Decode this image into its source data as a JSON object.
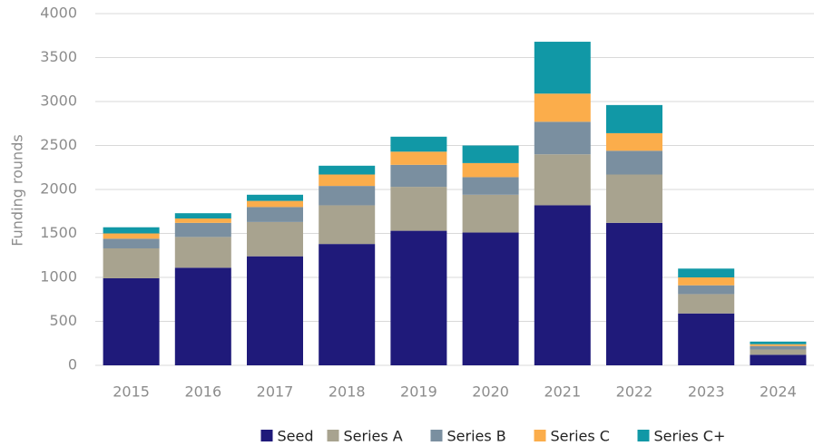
{
  "chart_data": {
    "type": "stacked_bar",
    "y_label": "Funding rounds",
    "categories": [
      "2015",
      "2016",
      "2017",
      "2018",
      "2019",
      "2020",
      "2021",
      "2022",
      "2023",
      "2024"
    ],
    "series": [
      {
        "name": "Seed",
        "color": "#1f1a7a",
        "values": [
          990,
          1110,
          1240,
          1380,
          1530,
          1510,
          1820,
          1620,
          590,
          120
        ]
      },
      {
        "name": "Series A",
        "color": "#a8a38f",
        "values": [
          340,
          350,
          390,
          440,
          500,
          430,
          580,
          550,
          220,
          60
        ]
      },
      {
        "name": "Series B",
        "color": "#7a8fa0",
        "values": [
          110,
          160,
          170,
          220,
          250,
          200,
          370,
          270,
          100,
          40
        ]
      },
      {
        "name": "Series C",
        "color": "#fbad4b",
        "values": [
          60,
          50,
          70,
          130,
          150,
          160,
          320,
          200,
          90,
          20
        ]
      },
      {
        "name": "Series C+",
        "color": "#1198a6",
        "values": [
          70,
          60,
          70,
          100,
          170,
          200,
          590,
          320,
          100,
          30
        ]
      }
    ],
    "ylim": [
      0,
      4000
    ],
    "yticks": [
      0,
      500,
      1000,
      1500,
      2000,
      2500,
      3000,
      3500,
      4000
    ],
    "grid": true
  }
}
